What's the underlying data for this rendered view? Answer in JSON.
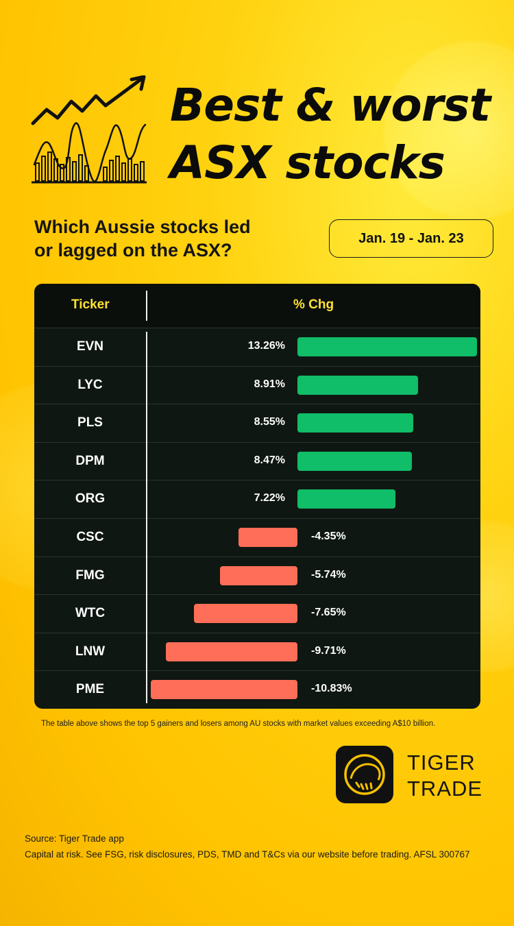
{
  "header": {
    "title_line1": "Best & worst",
    "title_line2": "ASX stocks",
    "subtitle_line1": "Which Aussie stocks led",
    "subtitle_line2": "or lagged on the ASX?",
    "date_range": "Jan. 19 - Jan. 23"
  },
  "colors": {
    "gain": "#10bd68",
    "loss": "#fe6e58",
    "table_bg": "#0f1712",
    "accent_yellow": "#ffe233"
  },
  "chart_data": {
    "type": "bar",
    "columns": {
      "ticker": "Ticker",
      "change": "% Chg"
    },
    "categories": [
      "EVN",
      "LYC",
      "PLS",
      "DPM",
      "ORG",
      "CSC",
      "FMG",
      "WTC",
      "LNW",
      "PME"
    ],
    "values": [
      13.26,
      8.91,
      8.55,
      8.47,
      7.22,
      -4.35,
      -5.74,
      -7.65,
      -9.71,
      -10.83
    ],
    "labels": [
      "13.26%",
      "8.91%",
      "8.55%",
      "8.47%",
      "7.22%",
      "-4.35%",
      "-5.74%",
      "-7.65%",
      "-9.71%",
      "-10.83%"
    ]
  },
  "footnote": "The table above shows the top 5 gainers and losers among AU stocks with market values exceeding A$10 billion.",
  "brand": {
    "line1": "TIGER",
    "line2": "TRADE",
    "logo_icon": "tiger-trade-logo-icon"
  },
  "source": "Source: Tiger Trade app",
  "disclaimer": "Capital at risk. See FSG, risk disclosures, PDS, TMD and T&Cs via our website before trading. AFSL 300767"
}
